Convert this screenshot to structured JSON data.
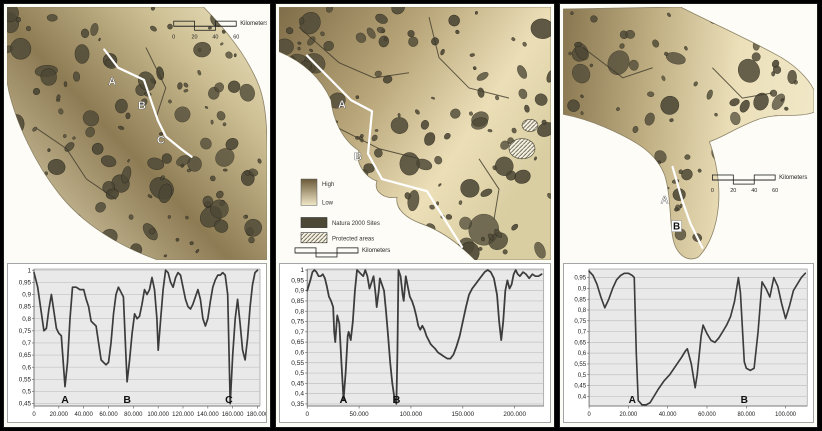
{
  "figure": {
    "kind": "three-panel map and profile figure"
  },
  "colors": {
    "background": "#000000",
    "panel_bg": "#fcfcf7",
    "sea": "#fdfcf6",
    "land_light": "#ece1bd",
    "land_dark": "#83714c",
    "coast_stroke": "#8c8266",
    "patch_fill": "#4d4836",
    "patch_stroke": "#2b281c",
    "river": "#3e392a",
    "transect": "#ffffff",
    "chart_bg": "#e9e9e9",
    "chart_grid": "#c2c2c2",
    "chart_line": "#3c3c3c",
    "text": "#1c1c1c"
  },
  "maps": [
    {
      "id": "map-1",
      "transect_labels": [
        "A",
        "B",
        "C"
      ],
      "scalebar": {
        "label": "Kilometers",
        "ticks": [
          "0",
          "20",
          "40",
          "60"
        ]
      }
    },
    {
      "id": "map-2",
      "transect_labels": [
        "A",
        "B"
      ],
      "scalebar": {
        "label": "Kilometers",
        "ticks": [
          "0",
          "20",
          "40",
          "60"
        ]
      },
      "legend": {
        "high": "High",
        "low": "Low",
        "items": [
          {
            "label": "Natura 2000 Sites",
            "swatch": "natura"
          },
          {
            "label": "Protected areas",
            "swatch": "hatch"
          }
        ]
      }
    },
    {
      "id": "map-3",
      "transect_labels": [
        "A",
        "B"
      ],
      "scalebar": {
        "label": "Kilometers",
        "ticks": [
          "0",
          "20",
          "40",
          "60"
        ]
      }
    }
  ],
  "chart_data": [
    {
      "type": "line",
      "title": "",
      "xlabel": "",
      "ylabel": "",
      "grid": true,
      "xlim": [
        0,
        182000
      ],
      "ylim": [
        0.44,
        1.005
      ],
      "yticks": [
        1,
        0.95,
        0.9,
        0.85,
        0.8,
        0.75,
        0.7,
        0.65,
        0.6,
        0.55,
        0.5,
        0.45
      ],
      "ytick_labels": [
        "1",
        "0,95",
        "0,9",
        "0,85",
        "0,8",
        "0,75",
        "0,7",
        "0,65",
        "0,6",
        "0,55",
        "0,5",
        "0,45"
      ],
      "xticks": [
        0,
        20000,
        40000,
        60000,
        80000,
        100000,
        120000,
        140000,
        160000,
        180000
      ],
      "xtick_labels": [
        "0",
        "20.000",
        "40.000",
        "60.000",
        "80.000",
        "100.000",
        "120.000",
        "140.000",
        "160.000",
        "180.000"
      ],
      "annotations": [
        {
          "label": "A",
          "x": 25000
        },
        {
          "label": "B",
          "x": 75000
        },
        {
          "label": "C",
          "x": 157000
        }
      ],
      "points": [
        [
          0,
          0.99
        ],
        [
          3000,
          0.93
        ],
        [
          6000,
          0.82
        ],
        [
          8000,
          0.75
        ],
        [
          10000,
          0.76
        ],
        [
          12000,
          0.84
        ],
        [
          14000,
          0.9
        ],
        [
          16000,
          0.83
        ],
        [
          18000,
          0.76
        ],
        [
          20000,
          0.74
        ],
        [
          22000,
          0.73
        ],
        [
          25000,
          0.52
        ],
        [
          27000,
          0.62
        ],
        [
          29000,
          0.8
        ],
        [
          31000,
          0.93
        ],
        [
          34000,
          0.93
        ],
        [
          37000,
          0.92
        ],
        [
          40000,
          0.92
        ],
        [
          42000,
          0.88
        ],
        [
          44000,
          0.85
        ],
        [
          46000,
          0.79
        ],
        [
          48000,
          0.78
        ],
        [
          50000,
          0.77
        ],
        [
          52000,
          0.7
        ],
        [
          54000,
          0.63
        ],
        [
          56000,
          0.62
        ],
        [
          58000,
          0.61
        ],
        [
          60000,
          0.62
        ],
        [
          62000,
          0.7
        ],
        [
          64000,
          0.82
        ],
        [
          66000,
          0.9
        ],
        [
          68000,
          0.93
        ],
        [
          70000,
          0.91
        ],
        [
          72000,
          0.89
        ],
        [
          74000,
          0.65
        ],
        [
          75000,
          0.54
        ],
        [
          77000,
          0.63
        ],
        [
          79000,
          0.74
        ],
        [
          81000,
          0.82
        ],
        [
          83000,
          0.8
        ],
        [
          85000,
          0.81
        ],
        [
          87000,
          0.86
        ],
        [
          89000,
          0.92
        ],
        [
          91000,
          0.9
        ],
        [
          93000,
          0.92
        ],
        [
          95000,
          0.97
        ],
        [
          97000,
          0.92
        ],
        [
          99000,
          0.8
        ],
        [
          100000,
          0.67
        ],
        [
          102000,
          0.8
        ],
        [
          104000,
          0.92
        ],
        [
          106000,
          1.0
        ],
        [
          108000,
          0.99
        ],
        [
          110000,
          0.95
        ],
        [
          112000,
          0.93
        ],
        [
          114000,
          0.97
        ],
        [
          116000,
          0.99
        ],
        [
          118000,
          0.98
        ],
        [
          120000,
          0.93
        ],
        [
          122000,
          0.88
        ],
        [
          124000,
          0.85
        ],
        [
          126000,
          0.84
        ],
        [
          128000,
          0.86
        ],
        [
          130000,
          0.89
        ],
        [
          132000,
          0.92
        ],
        [
          134000,
          0.88
        ],
        [
          136000,
          0.8
        ],
        [
          138000,
          0.77
        ],
        [
          140000,
          0.8
        ],
        [
          142000,
          0.87
        ],
        [
          144000,
          0.93
        ],
        [
          146000,
          0.96
        ],
        [
          148000,
          0.98
        ],
        [
          150000,
          0.98
        ],
        [
          152000,
          0.99
        ],
        [
          154000,
          0.98
        ],
        [
          156000,
          0.9
        ],
        [
          158000,
          0.45
        ],
        [
          160000,
          0.65
        ],
        [
          162000,
          0.8
        ],
        [
          164000,
          0.88
        ],
        [
          166000,
          0.78
        ],
        [
          168000,
          0.67
        ],
        [
          170000,
          0.63
        ],
        [
          172000,
          0.72
        ],
        [
          174000,
          0.85
        ],
        [
          176000,
          0.94
        ],
        [
          178000,
          0.99
        ],
        [
          180000,
          1.0
        ]
      ]
    },
    {
      "type": "line",
      "title": "",
      "xlabel": "",
      "ylabel": "",
      "grid": true,
      "xlim": [
        0,
        228000
      ],
      "ylim": [
        0.34,
        1.005
      ],
      "yticks": [
        1,
        0.95,
        0.9,
        0.85,
        0.8,
        0.75,
        0.7,
        0.65,
        0.6,
        0.55,
        0.5,
        0.45,
        0.4,
        0.35
      ],
      "ytick_labels": [
        "1",
        "0,95",
        "0,9",
        "0,85",
        "0,8",
        "0,75",
        "0,7",
        "0,65",
        "0,6",
        "0,55",
        "0,5",
        "0,45",
        "0,4",
        "0,35"
      ],
      "xticks": [
        0,
        50000,
        100000,
        150000,
        200000
      ],
      "xtick_labels": [
        "0",
        "50.000",
        "100.000",
        "150.000",
        "200.000"
      ],
      "annotations": [
        {
          "label": "A",
          "x": 35000
        },
        {
          "label": "B",
          "x": 86000
        }
      ],
      "points": [
        [
          0,
          0.9
        ],
        [
          3000,
          0.95
        ],
        [
          5000,
          0.99
        ],
        [
          7000,
          1.0
        ],
        [
          9000,
          0.99
        ],
        [
          11000,
          0.97
        ],
        [
          13000,
          0.97
        ],
        [
          15000,
          0.98
        ],
        [
          17000,
          0.96
        ],
        [
          19000,
          0.92
        ],
        [
          21000,
          0.87
        ],
        [
          23000,
          0.85
        ],
        [
          25000,
          0.82
        ],
        [
          26000,
          0.7
        ],
        [
          27000,
          0.65
        ],
        [
          28000,
          0.72
        ],
        [
          29000,
          0.78
        ],
        [
          31000,
          0.74
        ],
        [
          33000,
          0.55
        ],
        [
          35000,
          0.37
        ],
        [
          37000,
          0.5
        ],
        [
          39000,
          0.68
        ],
        [
          40000,
          0.7
        ],
        [
          42000,
          0.66
        ],
        [
          44000,
          0.75
        ],
        [
          46000,
          0.9
        ],
        [
          48000,
          1.0
        ],
        [
          50000,
          0.99
        ],
        [
          52000,
          0.98
        ],
        [
          54000,
          0.97
        ],
        [
          56000,
          1.0
        ],
        [
          58000,
          0.97
        ],
        [
          60000,
          0.91
        ],
        [
          62000,
          0.94
        ],
        [
          64000,
          0.97
        ],
        [
          66000,
          0.88
        ],
        [
          67000,
          0.82
        ],
        [
          69000,
          0.9
        ],
        [
          70000,
          0.96
        ],
        [
          72000,
          0.93
        ],
        [
          74000,
          0.9
        ],
        [
          76000,
          0.8
        ],
        [
          78000,
          0.68
        ],
        [
          80000,
          0.55
        ],
        [
          82000,
          0.45
        ],
        [
          84000,
          0.38
        ],
        [
          86000,
          0.35
        ],
        [
          87000,
          0.6
        ],
        [
          88000,
          1.0
        ],
        [
          90000,
          0.97
        ],
        [
          92000,
          0.88
        ],
        [
          93000,
          0.85
        ],
        [
          95000,
          0.97
        ],
        [
          97000,
          0.92
        ],
        [
          99000,
          0.87
        ],
        [
          101000,
          0.85
        ],
        [
          103000,
          0.82
        ],
        [
          105000,
          0.78
        ],
        [
          107000,
          0.73
        ],
        [
          109000,
          0.71
        ],
        [
          111000,
          0.73
        ],
        [
          113000,
          0.71
        ],
        [
          115000,
          0.68
        ],
        [
          117000,
          0.66
        ],
        [
          119000,
          0.64
        ],
        [
          121000,
          0.63
        ],
        [
          123000,
          0.62
        ],
        [
          126000,
          0.6
        ],
        [
          129000,
          0.59
        ],
        [
          132000,
          0.58
        ],
        [
          135000,
          0.57
        ],
        [
          138000,
          0.57
        ],
        [
          141000,
          0.59
        ],
        [
          144000,
          0.63
        ],
        [
          147000,
          0.68
        ],
        [
          150000,
          0.75
        ],
        [
          153000,
          0.82
        ],
        [
          156000,
          0.88
        ],
        [
          159000,
          0.91
        ],
        [
          162000,
          0.93
        ],
        [
          165000,
          0.95
        ],
        [
          168000,
          0.97
        ],
        [
          171000,
          0.99
        ],
        [
          174000,
          1.0
        ],
        [
          177000,
          0.99
        ],
        [
          180000,
          0.96
        ],
        [
          183000,
          0.88
        ],
        [
          185000,
          0.75
        ],
        [
          187000,
          0.66
        ],
        [
          189000,
          0.75
        ],
        [
          191000,
          0.9
        ],
        [
          193000,
          0.95
        ],
        [
          195000,
          0.91
        ],
        [
          197000,
          0.93
        ],
        [
          199000,
          0.98
        ],
        [
          201000,
          1.0
        ],
        [
          203000,
          0.98
        ],
        [
          205000,
          0.97
        ],
        [
          208000,
          0.99
        ],
        [
          211000,
          0.98
        ],
        [
          214000,
          0.96
        ],
        [
          217000,
          0.98
        ],
        [
          220000,
          0.97
        ],
        [
          223000,
          0.97
        ],
        [
          226000,
          0.98
        ]
      ]
    },
    {
      "type": "line",
      "title": "",
      "xlabel": "",
      "ylabel": "",
      "grid": true,
      "xlim": [
        0,
        111000
      ],
      "ylim": [
        0.355,
        0.99
      ],
      "yticks": [
        0.95,
        0.9,
        0.85,
        0.8,
        0.75,
        0.7,
        0.65,
        0.6,
        0.55,
        0.5,
        0.45,
        0.4
      ],
      "ytick_labels": [
        "0,95",
        "0,9",
        "0,85",
        "0,8",
        "0,75",
        "0,7",
        "0,65",
        "0,6",
        "0,55",
        "0,5",
        "0,45",
        "0,4"
      ],
      "xticks": [
        0,
        20000,
        40000,
        60000,
        80000,
        100000
      ],
      "xtick_labels": [
        "0",
        "20.000",
        "40.000",
        "60.000",
        "80.000",
        "100.000"
      ],
      "annotations": [
        {
          "label": "A",
          "x": 22000
        },
        {
          "label": "B",
          "x": 79000
        }
      ],
      "points": [
        [
          0,
          0.98
        ],
        [
          2000,
          0.96
        ],
        [
          4000,
          0.92
        ],
        [
          6000,
          0.86
        ],
        [
          8000,
          0.81
        ],
        [
          10000,
          0.85
        ],
        [
          12000,
          0.9
        ],
        [
          14000,
          0.94
        ],
        [
          16000,
          0.96
        ],
        [
          18000,
          0.97
        ],
        [
          20000,
          0.97
        ],
        [
          22000,
          0.96
        ],
        [
          23000,
          0.95
        ],
        [
          24000,
          0.6
        ],
        [
          25000,
          0.38
        ],
        [
          27000,
          0.36
        ],
        [
          29000,
          0.36
        ],
        [
          31000,
          0.37
        ],
        [
          33000,
          0.4
        ],
        [
          35000,
          0.43
        ],
        [
          38000,
          0.47
        ],
        [
          41000,
          0.5
        ],
        [
          44000,
          0.54
        ],
        [
          47000,
          0.58
        ],
        [
          49000,
          0.61
        ],
        [
          50000,
          0.62
        ],
        [
          52000,
          0.55
        ],
        [
          54000,
          0.44
        ],
        [
          55000,
          0.5
        ],
        [
          57000,
          0.68
        ],
        [
          58000,
          0.73
        ],
        [
          60000,
          0.69
        ],
        [
          62000,
          0.66
        ],
        [
          64000,
          0.65
        ],
        [
          66000,
          0.67
        ],
        [
          68000,
          0.7
        ],
        [
          70000,
          0.73
        ],
        [
          72000,
          0.77
        ],
        [
          74000,
          0.84
        ],
        [
          76000,
          0.95
        ],
        [
          77000,
          0.88
        ],
        [
          79000,
          0.56
        ],
        [
          80000,
          0.53
        ],
        [
          82000,
          0.52
        ],
        [
          84000,
          0.53
        ],
        [
          86000,
          0.7
        ],
        [
          88000,
          0.93
        ],
        [
          90000,
          0.9
        ],
        [
          92000,
          0.86
        ],
        [
          94000,
          0.95
        ],
        [
          96000,
          0.91
        ],
        [
          98000,
          0.83
        ],
        [
          100000,
          0.76
        ],
        [
          102000,
          0.82
        ],
        [
          104000,
          0.89
        ],
        [
          106000,
          0.92
        ],
        [
          108000,
          0.95
        ],
        [
          110000,
          0.97
        ]
      ]
    }
  ]
}
